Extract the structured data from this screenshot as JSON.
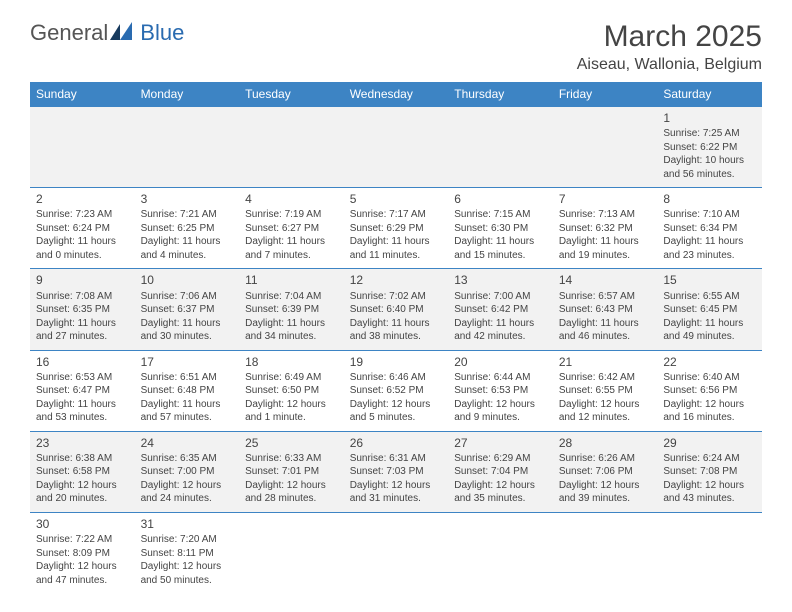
{
  "logo": {
    "word1": "General",
    "word2": "Blue"
  },
  "title": "March 2025",
  "location": "Aiseau, Wallonia, Belgium",
  "colors": {
    "header_bg": "#3d84c4",
    "header_text": "#ffffff",
    "row_alt": "#f2f2f2",
    "border": "#3d84c4",
    "logo_blue": "#2a6bb0"
  },
  "day_headers": [
    "Sunday",
    "Monday",
    "Tuesday",
    "Wednesday",
    "Thursday",
    "Friday",
    "Saturday"
  ],
  "weeks": [
    [
      null,
      null,
      null,
      null,
      null,
      null,
      {
        "n": "1",
        "sunrise": "Sunrise: 7:25 AM",
        "sunset": "Sunset: 6:22 PM",
        "day1": "Daylight: 10 hours",
        "day2": "and 56 minutes."
      }
    ],
    [
      {
        "n": "2",
        "sunrise": "Sunrise: 7:23 AM",
        "sunset": "Sunset: 6:24 PM",
        "day1": "Daylight: 11 hours",
        "day2": "and 0 minutes."
      },
      {
        "n": "3",
        "sunrise": "Sunrise: 7:21 AM",
        "sunset": "Sunset: 6:25 PM",
        "day1": "Daylight: 11 hours",
        "day2": "and 4 minutes."
      },
      {
        "n": "4",
        "sunrise": "Sunrise: 7:19 AM",
        "sunset": "Sunset: 6:27 PM",
        "day1": "Daylight: 11 hours",
        "day2": "and 7 minutes."
      },
      {
        "n": "5",
        "sunrise": "Sunrise: 7:17 AM",
        "sunset": "Sunset: 6:29 PM",
        "day1": "Daylight: 11 hours",
        "day2": "and 11 minutes."
      },
      {
        "n": "6",
        "sunrise": "Sunrise: 7:15 AM",
        "sunset": "Sunset: 6:30 PM",
        "day1": "Daylight: 11 hours",
        "day2": "and 15 minutes."
      },
      {
        "n": "7",
        "sunrise": "Sunrise: 7:13 AM",
        "sunset": "Sunset: 6:32 PM",
        "day1": "Daylight: 11 hours",
        "day2": "and 19 minutes."
      },
      {
        "n": "8",
        "sunrise": "Sunrise: 7:10 AM",
        "sunset": "Sunset: 6:34 PM",
        "day1": "Daylight: 11 hours",
        "day2": "and 23 minutes."
      }
    ],
    [
      {
        "n": "9",
        "sunrise": "Sunrise: 7:08 AM",
        "sunset": "Sunset: 6:35 PM",
        "day1": "Daylight: 11 hours",
        "day2": "and 27 minutes."
      },
      {
        "n": "10",
        "sunrise": "Sunrise: 7:06 AM",
        "sunset": "Sunset: 6:37 PM",
        "day1": "Daylight: 11 hours",
        "day2": "and 30 minutes."
      },
      {
        "n": "11",
        "sunrise": "Sunrise: 7:04 AM",
        "sunset": "Sunset: 6:39 PM",
        "day1": "Daylight: 11 hours",
        "day2": "and 34 minutes."
      },
      {
        "n": "12",
        "sunrise": "Sunrise: 7:02 AM",
        "sunset": "Sunset: 6:40 PM",
        "day1": "Daylight: 11 hours",
        "day2": "and 38 minutes."
      },
      {
        "n": "13",
        "sunrise": "Sunrise: 7:00 AM",
        "sunset": "Sunset: 6:42 PM",
        "day1": "Daylight: 11 hours",
        "day2": "and 42 minutes."
      },
      {
        "n": "14",
        "sunrise": "Sunrise: 6:57 AM",
        "sunset": "Sunset: 6:43 PM",
        "day1": "Daylight: 11 hours",
        "day2": "and 46 minutes."
      },
      {
        "n": "15",
        "sunrise": "Sunrise: 6:55 AM",
        "sunset": "Sunset: 6:45 PM",
        "day1": "Daylight: 11 hours",
        "day2": "and 49 minutes."
      }
    ],
    [
      {
        "n": "16",
        "sunrise": "Sunrise: 6:53 AM",
        "sunset": "Sunset: 6:47 PM",
        "day1": "Daylight: 11 hours",
        "day2": "and 53 minutes."
      },
      {
        "n": "17",
        "sunrise": "Sunrise: 6:51 AM",
        "sunset": "Sunset: 6:48 PM",
        "day1": "Daylight: 11 hours",
        "day2": "and 57 minutes."
      },
      {
        "n": "18",
        "sunrise": "Sunrise: 6:49 AM",
        "sunset": "Sunset: 6:50 PM",
        "day1": "Daylight: 12 hours",
        "day2": "and 1 minute."
      },
      {
        "n": "19",
        "sunrise": "Sunrise: 6:46 AM",
        "sunset": "Sunset: 6:52 PM",
        "day1": "Daylight: 12 hours",
        "day2": "and 5 minutes."
      },
      {
        "n": "20",
        "sunrise": "Sunrise: 6:44 AM",
        "sunset": "Sunset: 6:53 PM",
        "day1": "Daylight: 12 hours",
        "day2": "and 9 minutes."
      },
      {
        "n": "21",
        "sunrise": "Sunrise: 6:42 AM",
        "sunset": "Sunset: 6:55 PM",
        "day1": "Daylight: 12 hours",
        "day2": "and 12 minutes."
      },
      {
        "n": "22",
        "sunrise": "Sunrise: 6:40 AM",
        "sunset": "Sunset: 6:56 PM",
        "day1": "Daylight: 12 hours",
        "day2": "and 16 minutes."
      }
    ],
    [
      {
        "n": "23",
        "sunrise": "Sunrise: 6:38 AM",
        "sunset": "Sunset: 6:58 PM",
        "day1": "Daylight: 12 hours",
        "day2": "and 20 minutes."
      },
      {
        "n": "24",
        "sunrise": "Sunrise: 6:35 AM",
        "sunset": "Sunset: 7:00 PM",
        "day1": "Daylight: 12 hours",
        "day2": "and 24 minutes."
      },
      {
        "n": "25",
        "sunrise": "Sunrise: 6:33 AM",
        "sunset": "Sunset: 7:01 PM",
        "day1": "Daylight: 12 hours",
        "day2": "and 28 minutes."
      },
      {
        "n": "26",
        "sunrise": "Sunrise: 6:31 AM",
        "sunset": "Sunset: 7:03 PM",
        "day1": "Daylight: 12 hours",
        "day2": "and 31 minutes."
      },
      {
        "n": "27",
        "sunrise": "Sunrise: 6:29 AM",
        "sunset": "Sunset: 7:04 PM",
        "day1": "Daylight: 12 hours",
        "day2": "and 35 minutes."
      },
      {
        "n": "28",
        "sunrise": "Sunrise: 6:26 AM",
        "sunset": "Sunset: 7:06 PM",
        "day1": "Daylight: 12 hours",
        "day2": "and 39 minutes."
      },
      {
        "n": "29",
        "sunrise": "Sunrise: 6:24 AM",
        "sunset": "Sunset: 7:08 PM",
        "day1": "Daylight: 12 hours",
        "day2": "and 43 minutes."
      }
    ],
    [
      {
        "n": "30",
        "sunrise": "Sunrise: 7:22 AM",
        "sunset": "Sunset: 8:09 PM",
        "day1": "Daylight: 12 hours",
        "day2": "and 47 minutes."
      },
      {
        "n": "31",
        "sunrise": "Sunrise: 7:20 AM",
        "sunset": "Sunset: 8:11 PM",
        "day1": "Daylight: 12 hours",
        "day2": "and 50 minutes."
      },
      null,
      null,
      null,
      null,
      null
    ]
  ]
}
